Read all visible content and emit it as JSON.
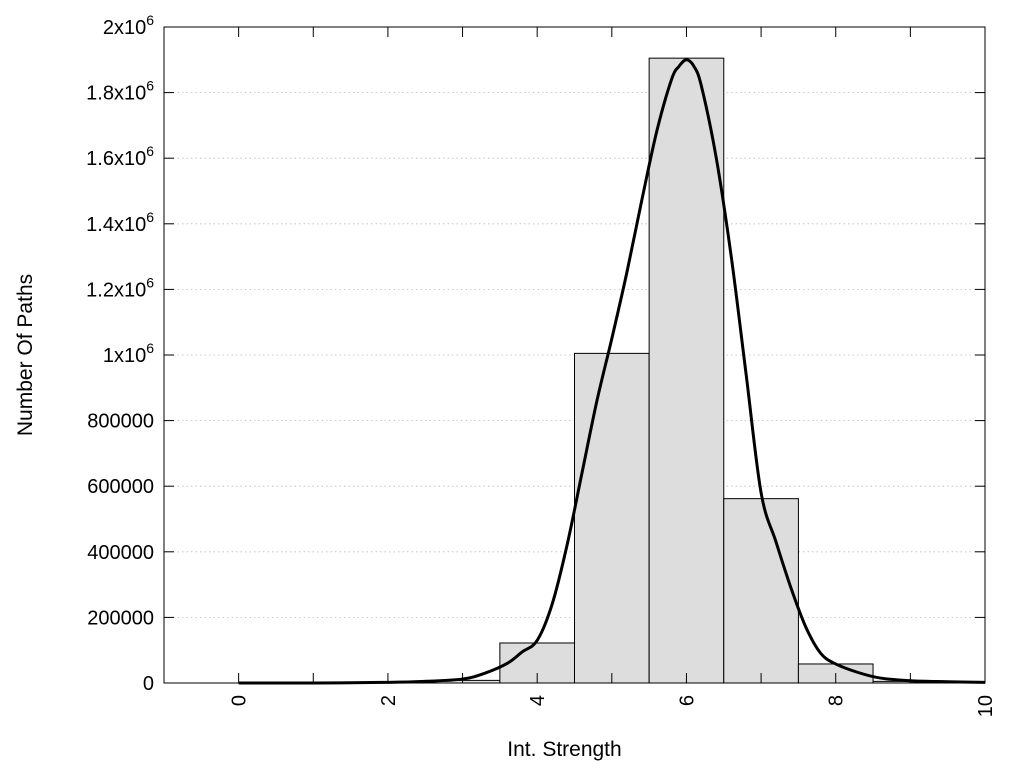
{
  "chart_data": {
    "type": "bar",
    "title": "",
    "xlabel": "Int. Strength",
    "ylabel": "Number Of Paths",
    "xlim": [
      -1,
      10
    ],
    "ylim": [
      0,
      2000000
    ],
    "x_ticks": [
      {
        "value": 0,
        "label": "0"
      },
      {
        "value": 2,
        "label": "2"
      },
      {
        "value": 4,
        "label": "4"
      },
      {
        "value": 6,
        "label": "6"
      },
      {
        "value": 8,
        "label": "8"
      },
      {
        "value": 10,
        "label": "10"
      }
    ],
    "x_minor_ticks": [
      1,
      3,
      5,
      7,
      9
    ],
    "y_ticks": [
      {
        "value": 0,
        "base": "0",
        "sup": ""
      },
      {
        "value": 200000,
        "base": "200000",
        "sup": ""
      },
      {
        "value": 400000,
        "base": "400000",
        "sup": ""
      },
      {
        "value": 600000,
        "base": "600000",
        "sup": ""
      },
      {
        "value": 800000,
        "base": "800000",
        "sup": ""
      },
      {
        "value": 1000000,
        "base": "1x10",
        "sup": "6"
      },
      {
        "value": 1200000,
        "base": "1.2x10",
        "sup": "6"
      },
      {
        "value": 1400000,
        "base": "1.4x10",
        "sup": "6"
      },
      {
        "value": 1600000,
        "base": "1.6x10",
        "sup": "6"
      },
      {
        "value": 1800000,
        "base": "1.8x10",
        "sup": "6"
      },
      {
        "value": 2000000,
        "base": "2x10",
        "sup": "6"
      }
    ],
    "grid": {
      "horizontal": true,
      "style": "dotted"
    },
    "colors": {
      "bar_fill": "#dddddd",
      "bar_stroke": "#000000",
      "curve": "#000000",
      "grid": "#bbbbbb"
    },
    "bar_width": 1,
    "bars": [
      {
        "x": 0,
        "value": 0
      },
      {
        "x": 1,
        "value": 0
      },
      {
        "x": 2,
        "value": 0
      },
      {
        "x": 3,
        "value": 8000
      },
      {
        "x": 4,
        "value": 122000
      },
      {
        "x": 5,
        "value": 1005000
      },
      {
        "x": 6,
        "value": 1905000
      },
      {
        "x": 7,
        "value": 562000
      },
      {
        "x": 8,
        "value": 58000
      },
      {
        "x": 9,
        "value": 5000
      },
      {
        "x": 10,
        "value": 0
      }
    ],
    "curve": {
      "x": [
        0,
        1,
        2,
        2.5,
        3,
        3.3,
        3.6,
        3.8,
        4.0,
        4.2,
        4.4,
        4.6,
        4.8,
        5.0,
        5.2,
        5.4,
        5.6,
        5.8,
        5.9,
        6.0,
        6.1,
        6.2,
        6.4,
        6.6,
        6.8,
        7.0,
        7.2,
        7.4,
        7.6,
        7.8,
        8.0,
        8.3,
        8.6,
        9.0,
        9.5,
        10.0
      ],
      "y": [
        0,
        0,
        2000,
        5000,
        12000,
        30000,
        60000,
        95000,
        130000,
        240000,
        420000,
        640000,
        860000,
        1050000,
        1250000,
        1470000,
        1680000,
        1840000,
        1880000,
        1900000,
        1880000,
        1820000,
        1600000,
        1300000,
        940000,
        580000,
        430000,
        290000,
        170000,
        90000,
        58000,
        32000,
        15000,
        7000,
        4000,
        2000
      ]
    }
  }
}
